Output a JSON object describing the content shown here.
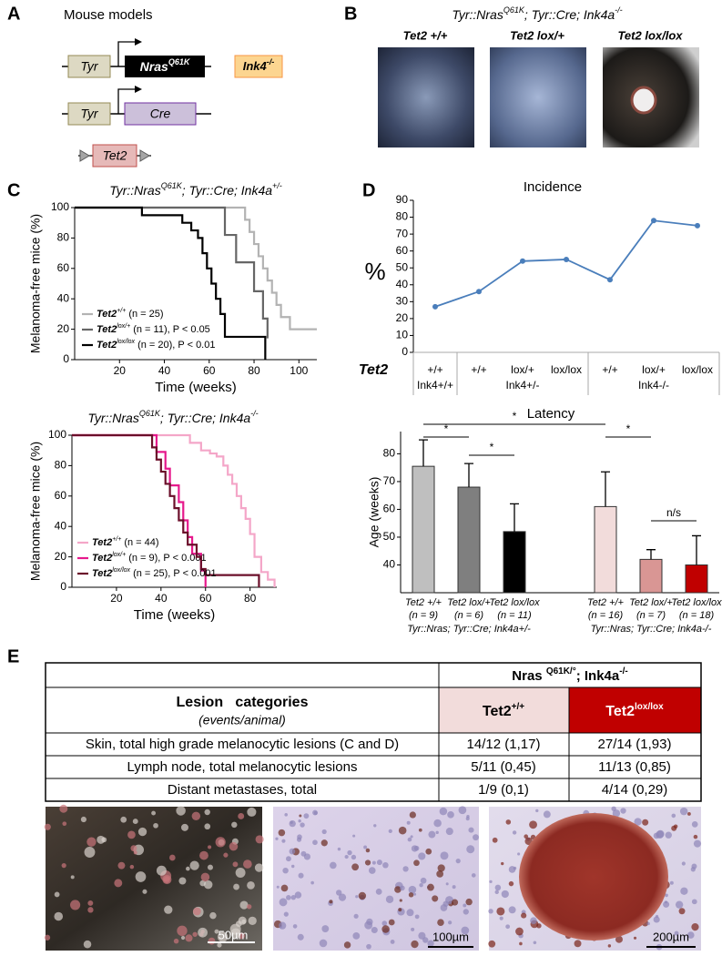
{
  "panel_labels": [
    "A",
    "B",
    "C",
    "D",
    "E"
  ],
  "panel_a": {
    "title": "Mouse models",
    "tyr_1": "Tyr",
    "nras": "Nras",
    "nras_sup": "Q61K",
    "ink4": "Ink4",
    "ink4_sup": "-/-",
    "tyr_2": "Tyr",
    "cre": "Cre",
    "tet2": "Tet2"
  },
  "panel_b": {
    "title": [
      "Tyr::Nras",
      "Q61K",
      "; Tyr::Cre; Ink4a",
      "-/-"
    ],
    "photos": [
      "Tet2 +/+",
      "Tet2 lox/+",
      "Tet2 lox/lox"
    ]
  },
  "chart_data": [
    {
      "type": "step",
      "title": [
        "Tyr::Nras",
        "Q61K",
        "; Tyr::Cre; Ink4a",
        "+/-"
      ],
      "x_label": "Time (weeks)",
      "y_label": "Melanoma-free mice (%)",
      "xlim": [
        0,
        108
      ],
      "xticks": [
        20,
        40,
        60,
        80,
        100
      ],
      "ylim": [
        0,
        100
      ],
      "yticks": [
        0,
        20,
        40,
        60,
        80,
        100
      ],
      "series": [
        {
          "name": "Tet2",
          "superscript": "+/+",
          "note": "(n = 25)",
          "color": "#b3b3b3",
          "x": [
            0,
            76,
            78,
            80,
            82,
            84,
            86,
            88,
            90,
            92,
            96,
            108
          ],
          "values": [
            100,
            92,
            84,
            76,
            68,
            60,
            52,
            44,
            36,
            28,
            20,
            20
          ]
        },
        {
          "name": "Tet2",
          "superscript": "lox/+",
          "note": "(n = 11), P < 0.05",
          "color": "#666666",
          "x": [
            0,
            67,
            72,
            80,
            84,
            86
          ],
          "values": [
            100,
            82,
            64,
            45,
            27,
            14
          ]
        },
        {
          "name": "Tet2",
          "superscript": "lox/lox",
          "note": "(n = 20), P < 0.01",
          "color": "#000000",
          "x": [
            0,
            30,
            48,
            52,
            55,
            57,
            59,
            61,
            63,
            65,
            67,
            85
          ],
          "values": [
            100,
            95,
            90,
            85,
            80,
            70,
            60,
            50,
            40,
            30,
            15,
            0
          ]
        }
      ]
    },
    {
      "type": "step",
      "title": [
        "Tyr::Nras",
        "Q61K",
        "; Tyr::Cre; Ink4a",
        "-/-"
      ],
      "x_label": "Time (weeks)",
      "y_label": "Melanoma-free mice (%)",
      "xlim": [
        0,
        92
      ],
      "xticks": [
        20,
        40,
        60,
        80
      ],
      "ylim": [
        0,
        100
      ],
      "yticks": [
        0,
        20,
        40,
        60,
        80,
        100
      ],
      "series": [
        {
          "name": "Tet2",
          "superscript": "+/+",
          "note": "(n = 44)",
          "color": "#f4a6c8",
          "x": [
            0,
            53,
            58,
            62,
            65,
            68,
            70,
            72,
            74,
            76,
            78,
            80,
            82,
            85,
            88,
            91
          ],
          "values": [
            100,
            95,
            90,
            88,
            86,
            80,
            74,
            68,
            60,
            52,
            45,
            35,
            20,
            10,
            5,
            0
          ]
        },
        {
          "name": "Tet2",
          "superscript": "lox/+",
          "note": "(n = 9), P < 0.001",
          "color": "#e6198c",
          "x": [
            0,
            38,
            42,
            44,
            48,
            50,
            52,
            54,
            58,
            60
          ],
          "values": [
            100,
            89,
            78,
            67,
            56,
            44,
            33,
            22,
            11,
            0
          ]
        },
        {
          "name": "Tet2",
          "superscript": "lox/lox",
          "note": "(n = 25), P < 0.001",
          "color": "#6b0f2a",
          "x": [
            0,
            36,
            38,
            40,
            42,
            44,
            46,
            48,
            50,
            52,
            56,
            58,
            60,
            84
          ],
          "values": [
            100,
            92,
            84,
            76,
            68,
            60,
            52,
            44,
            36,
            28,
            20,
            12,
            8,
            0
          ]
        }
      ]
    },
    {
      "type": "line",
      "title": "Incidence",
      "y_label": "%",
      "x_label": "Tet2",
      "categories": [
        "+/+",
        "+/+",
        "lox/+",
        "lox/lox",
        "+/+",
        "lox/+",
        "lox/lox"
      ],
      "group_labels": [
        "Ink4+/+",
        "Ink4+/-",
        "Ink4-/-"
      ],
      "values": [
        27,
        36,
        54,
        55,
        43,
        78,
        75
      ],
      "color": "#4a7ebb",
      "ylim": [
        0,
        90
      ],
      "yticks": [
        0,
        10,
        20,
        30,
        40,
        50,
        60,
        70,
        80,
        90
      ]
    },
    {
      "type": "bar",
      "title": "Latency",
      "y_label": "Age (weeks)",
      "categories": [
        "Tet2 +/+",
        "Tet2 lox/+",
        "Tet2 lox/lox",
        null,
        "Tet2 +/+",
        "Tet2 lox/+",
        "Tet2 lox/lox"
      ],
      "n_labels": [
        "(n = 9)",
        "(n = 6)",
        "(n = 11)",
        null,
        "(n = 16)",
        "(n = 7)",
        "(n = 18)"
      ],
      "group_labels": [
        "Tyr::Nras; Tyr::Cre; Ink4a+/-",
        "Tyr::Nras; Tyr::Cre; Ink4a-/-"
      ],
      "values": [
        75.5,
        68,
        52,
        null,
        61,
        42,
        40
      ],
      "errors": [
        9.5,
        8.5,
        10,
        null,
        12.5,
        3.5,
        10.5
      ],
      "colors": [
        "#bfbfbf",
        "#7f7f7f",
        "#000000",
        null,
        "#f2dcdb",
        "#d99694",
        "#c00000"
      ],
      "annotations": [
        "*",
        "*",
        "*",
        "*",
        "n/s"
      ],
      "ylim": [
        30,
        88
      ],
      "yticks": [
        40,
        50,
        60,
        70,
        80
      ]
    }
  ],
  "table": {
    "header": [
      "Nras ",
      "Q61K/°",
      "; Ink4a",
      "-/-"
    ],
    "col_title": "Lesion   categories",
    "col_subtitle": "(events/animal)",
    "col_2": [
      "Tet2",
      "+/+"
    ],
    "col_3": [
      "Tet2",
      "lox/lox"
    ],
    "rows": [
      [
        "Skin, total high grade melanocytic lesions (C and D)",
        "14/12 (1,17)",
        "27/14 (1,93)"
      ],
      [
        "Lymph node, total melanocytic lesions",
        "5/11 (0,45)",
        "11/13 (0,85)"
      ],
      [
        "Distant metastases, total",
        "1/9 (0,1)",
        "4/14 (0,29)"
      ]
    ]
  },
  "micrographs": {
    "scale_bars": [
      "50µm",
      "100µm",
      "200µm"
    ]
  }
}
